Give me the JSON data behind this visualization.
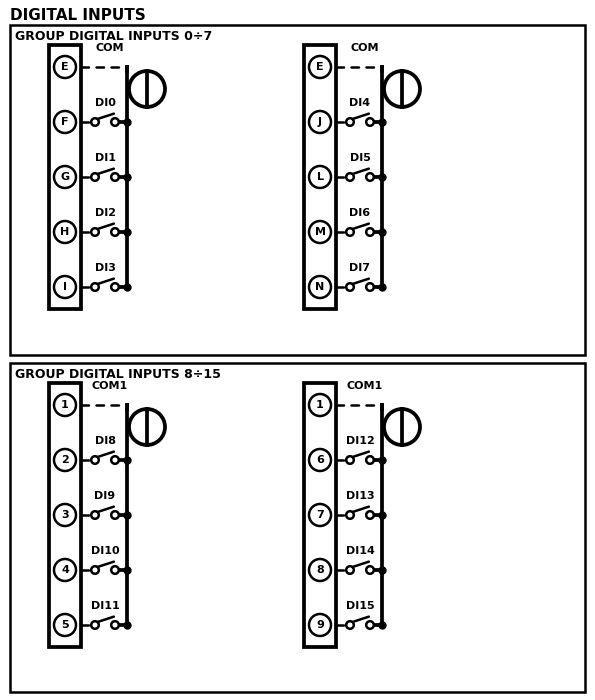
{
  "title": "DIGITAL INPUTS",
  "group1_title": "GROUP DIGITAL INPUTS 0÷7",
  "group2_title": "GROUP DIGITAL INPUTS 8÷15",
  "group1_left": {
    "com_label": "COM",
    "pins": [
      "E",
      "F",
      "G",
      "H",
      "I"
    ],
    "signals": [
      "DI0",
      "DI1",
      "DI2",
      "DI3"
    ]
  },
  "group1_right": {
    "com_label": "COM",
    "pins": [
      "E",
      "J",
      "L",
      "M",
      "N"
    ],
    "signals": [
      "DI4",
      "DI5",
      "DI6",
      "DI7"
    ]
  },
  "group2_left": {
    "com_label": "COM1",
    "pins": [
      "1",
      "2",
      "3",
      "4",
      "5"
    ],
    "signals": [
      "DI8",
      "DI9",
      "DI10",
      "DI11"
    ]
  },
  "group2_right": {
    "com_label": "COM1",
    "pins": [
      "1",
      "6",
      "7",
      "8",
      "9"
    ],
    "signals": [
      "DI12",
      "DI13",
      "DI14",
      "DI15"
    ]
  },
  "bg_color": "#ffffff",
  "line_color": "#000000"
}
